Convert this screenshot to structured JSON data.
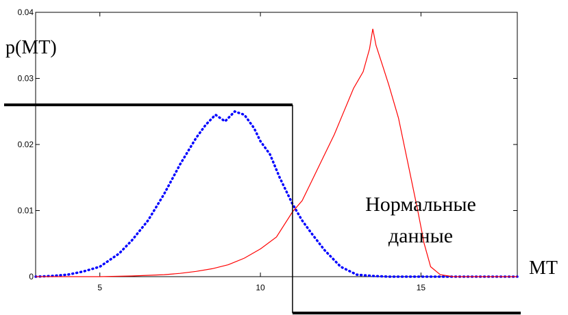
{
  "chart_data": {
    "type": "line",
    "ylabel": "p(MT)",
    "xlabel": "MT",
    "xlim": [
      3,
      18
    ],
    "ylim": [
      0,
      0.04
    ],
    "x_ticks": [
      {
        "value": 5,
        "label": "5"
      },
      {
        "value": 10,
        "label": "10"
      },
      {
        "value": 15,
        "label": "15"
      }
    ],
    "y_ticks": [
      {
        "value": 0,
        "label": "0"
      },
      {
        "value": 0.01,
        "label": "0.01"
      },
      {
        "value": 0.02,
        "label": "0.02"
      },
      {
        "value": 0.03,
        "label": "0.03"
      },
      {
        "value": 0.04,
        "label": "0.04"
      }
    ],
    "grid": false,
    "annotation": {
      "lines": [
        "Нормальные",
        "данные"
      ],
      "x": 14.3,
      "y": 0.0085
    },
    "threshold": {
      "x": 11,
      "left_level": 0.026,
      "right_level": -0.0055,
      "color": "#000000"
    },
    "series": [
      {
        "style": "dotted",
        "color": "#0000ff",
        "x": [
          3,
          3.5,
          4,
          4.5,
          5,
          5.3,
          5.6,
          6,
          6.5,
          7,
          7.5,
          8,
          8.3,
          8.6,
          8.9,
          9.2,
          9.5,
          9.8,
          10,
          10.3,
          10.6,
          11,
          11.3,
          11.6,
          12,
          12.5,
          13,
          13.5,
          14,
          15,
          16,
          17,
          18
        ],
        "y": [
          0,
          0.0001,
          0.0003,
          0.0008,
          0.0015,
          0.0025,
          0.0035,
          0.0055,
          0.0085,
          0.0125,
          0.017,
          0.021,
          0.023,
          0.0245,
          0.0235,
          0.025,
          0.0245,
          0.0225,
          0.0205,
          0.0185,
          0.015,
          0.011,
          0.0085,
          0.0065,
          0.004,
          0.0015,
          0.0003,
          0.0001,
          0,
          0,
          0,
          0,
          0
        ]
      },
      {
        "style": "solid",
        "color": "#ff0000",
        "x": [
          3,
          5,
          6,
          7,
          7.5,
          8,
          8.5,
          9,
          9.5,
          10,
          10.5,
          11,
          11.3,
          11.6,
          12,
          12.3,
          12.6,
          12.9,
          13.2,
          13.4,
          13.5,
          13.6,
          13.8,
          14,
          14.3,
          14.6,
          14.9,
          15.1,
          15.3,
          15.6,
          16,
          17,
          18
        ],
        "y": [
          0,
          0,
          0.0001,
          0.0003,
          0.0005,
          0.0008,
          0.0012,
          0.0018,
          0.0028,
          0.0042,
          0.006,
          0.0098,
          0.0115,
          0.0145,
          0.0185,
          0.0215,
          0.025,
          0.0285,
          0.031,
          0.0345,
          0.0375,
          0.035,
          0.032,
          0.029,
          0.024,
          0.017,
          0.01,
          0.005,
          0.0015,
          0.0003,
          0,
          0,
          0
        ]
      }
    ]
  }
}
